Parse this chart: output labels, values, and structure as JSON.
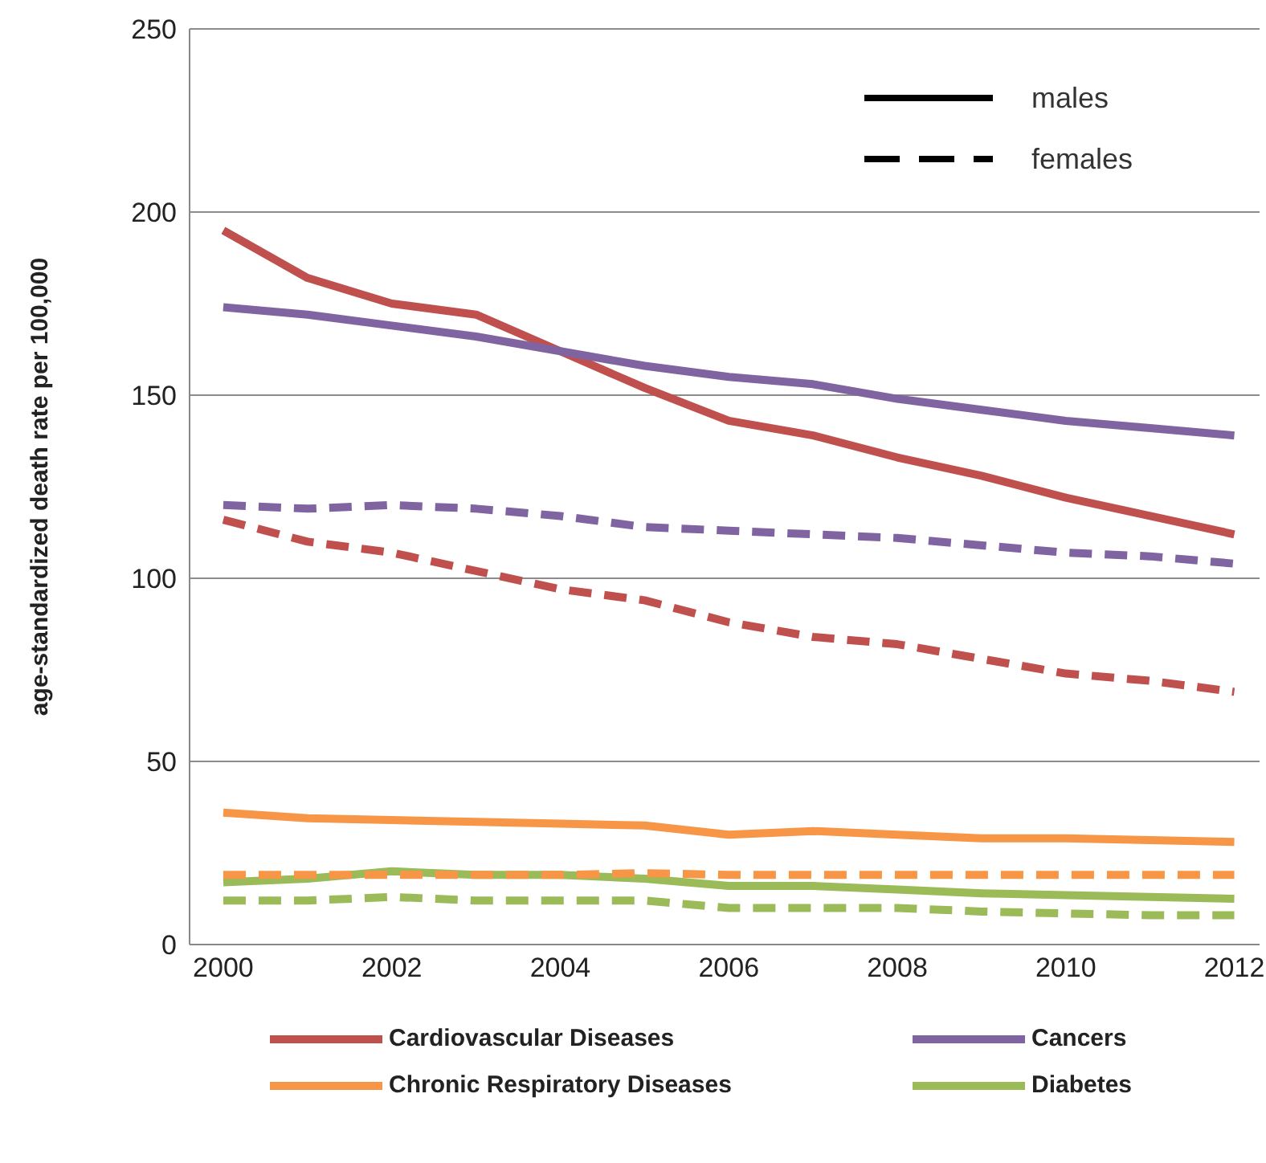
{
  "chart_data": {
    "type": "line",
    "ylabel": "age-standardized death rate per 100,000",
    "x": [
      2000,
      2001,
      2002,
      2003,
      2004,
      2005,
      2006,
      2007,
      2008,
      2009,
      2010,
      2011,
      2012
    ],
    "xlim": [
      1999.6,
      2012.3
    ],
    "xticks": [
      2000,
      2002,
      2004,
      2006,
      2008,
      2010,
      2012
    ],
    "ylim": [
      0,
      250
    ],
    "yticks": [
      0,
      50,
      100,
      150,
      200,
      250
    ],
    "grid": "y",
    "legend": "bottom",
    "marker": "none",
    "annotations": [
      "males",
      "females"
    ],
    "series": [
      {
        "name": "Cardiovascular Diseases",
        "color": "#c0504d",
        "line_style": "solid",
        "values": [
          195,
          182,
          175,
          172,
          162,
          152,
          143,
          139,
          133,
          128,
          122,
          117,
          112
        ]
      },
      {
        "name": "Cancers",
        "color": "#8064a2",
        "line_style": "solid",
        "values": [
          174,
          172,
          169,
          166,
          162,
          158,
          155,
          153,
          149,
          146,
          143,
          141,
          139
        ]
      },
      {
        "name": "Chronic Respiratory Diseases",
        "color": "#f79646",
        "line_style": "solid",
        "values": [
          36,
          34.5,
          34,
          33.5,
          33,
          32.5,
          30,
          31,
          30,
          29,
          29,
          28.5,
          28
        ]
      },
      {
        "name": "Diabetes",
        "color": "#9bbb59",
        "line_style": "solid",
        "values": [
          17,
          18,
          20,
          19,
          19,
          18,
          16,
          16,
          15,
          14,
          13.5,
          13,
          12.5
        ]
      },
      {
        "color": "#c0504d",
        "line_style": "dashed",
        "values": [
          116,
          110,
          107,
          102,
          97,
          94,
          88,
          84,
          82,
          78,
          74,
          72,
          69
        ]
      },
      {
        "color": "#8064a2",
        "line_style": "dashed",
        "values": [
          120,
          119,
          120,
          119,
          117,
          114,
          113,
          112,
          111,
          109,
          107,
          106,
          104
        ]
      },
      {
        "color": "#f79646",
        "line_style": "dashed",
        "values": [
          19,
          19,
          19,
          19,
          19,
          19.5,
          19,
          19,
          19,
          19,
          19,
          19,
          19
        ]
      },
      {
        "color": "#9bbb59",
        "line_style": "dashed",
        "values": [
          12,
          12,
          13,
          12,
          12,
          12,
          10,
          10,
          10,
          9,
          8.5,
          8,
          8
        ]
      }
    ]
  }
}
